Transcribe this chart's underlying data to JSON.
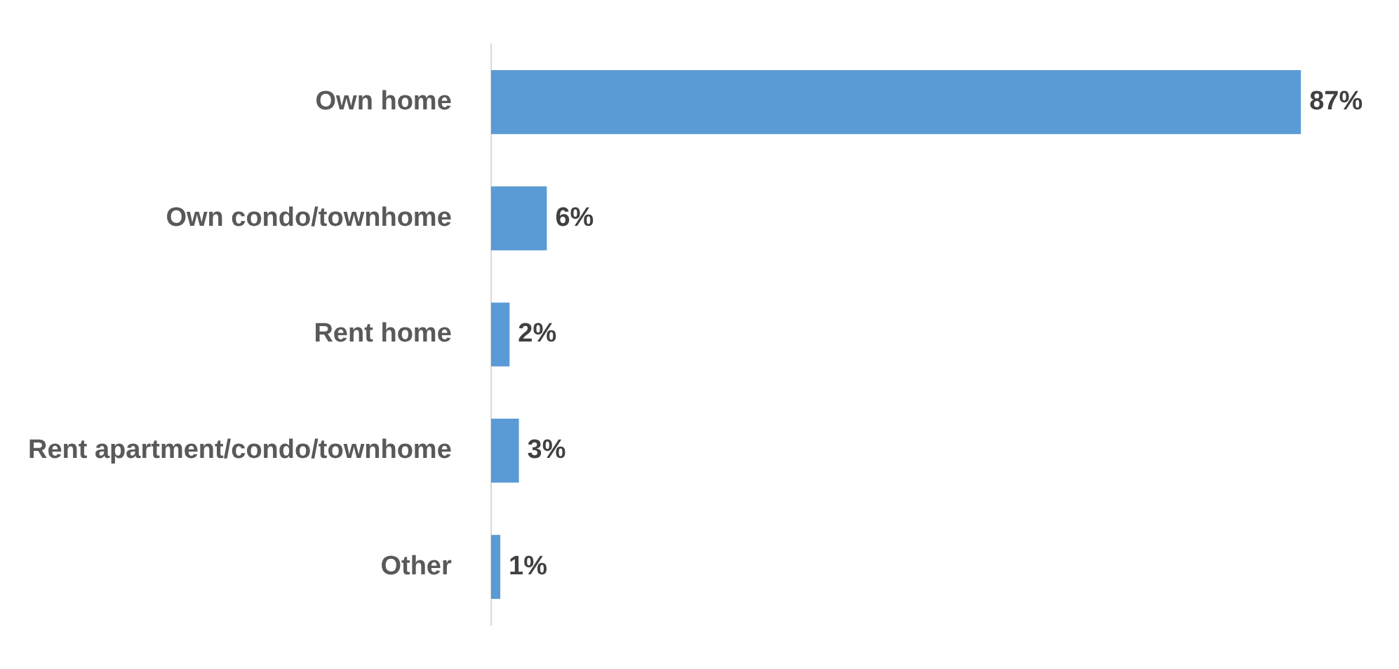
{
  "chart_data": {
    "type": "bar",
    "orientation": "horizontal",
    "categories": [
      "Own home",
      "Own condo/townhome",
      "Rent home",
      "Rent apartment/condo/townhome",
      "Other"
    ],
    "values": [
      87,
      6,
      2,
      3,
      1
    ],
    "value_labels": [
      "87%",
      "6%",
      "2%",
      "3%",
      "1%"
    ],
    "color": "#5b9bd5",
    "grid": false,
    "legend": false,
    "tick_labels": "y"
  }
}
